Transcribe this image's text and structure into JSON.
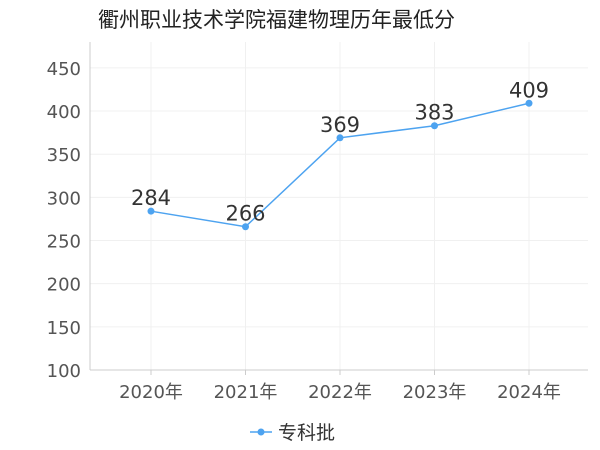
{
  "chart_data": {
    "type": "line",
    "title": "衢州职业技术学院福建物理历年最低分",
    "categories": [
      "2020年",
      "2021年",
      "2022年",
      "2023年",
      "2024年"
    ],
    "series": [
      {
        "name": "专科批",
        "values": [
          284,
          266,
          369,
          383,
          409
        ],
        "color": "#4da3f0"
      }
    ],
    "ylim": [
      100,
      480
    ],
    "yticks": [
      100,
      150,
      200,
      250,
      300,
      350,
      400,
      450
    ],
    "grid": true,
    "legend_position": "bottom-center"
  }
}
